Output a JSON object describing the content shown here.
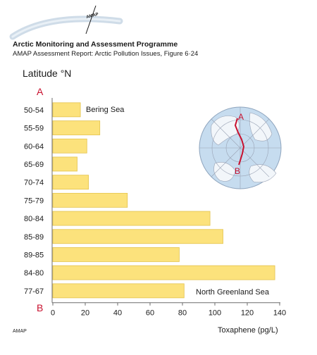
{
  "header": {
    "logo_text": "AMAP",
    "title": "Arctic Monitoring and Assessment Programme",
    "subtitle": "AMAP Assessment Report: Arctic Pollution Issues, Figure 6·24"
  },
  "footer": {
    "brand": "AMAP"
  },
  "colors": {
    "bar": "#fce27c",
    "bar_stroke": "#e3c34d",
    "axis": "#6b6b6b",
    "marker": "#c8102e",
    "grid": "#9aa3b5",
    "globe": "#c6dcef",
    "land": "#f2f6fa"
  },
  "chart_data": {
    "type": "bar",
    "orientation": "horizontal",
    "categories": [
      "50-54",
      "55-59",
      "60-64",
      "65-69",
      "70-74",
      "75-79",
      "80-84",
      "85-89",
      "89-85",
      "84-80",
      "77-67"
    ],
    "values": [
      17,
      29,
      21,
      15,
      22,
      46,
      97,
      105,
      78,
      137,
      81
    ],
    "ylabel": "Latitude °N",
    "xlabel": "Toxaphene (pg/L)",
    "xlim": [
      0,
      140
    ],
    "xticks": [
      0,
      20,
      40,
      60,
      80,
      100,
      120,
      140
    ],
    "start_marker": "A",
    "end_marker": "B",
    "annotations": [
      "Bering Sea",
      "North Greenland Sea"
    ],
    "inset_map": {
      "start_label": "A",
      "end_label": "B"
    }
  }
}
